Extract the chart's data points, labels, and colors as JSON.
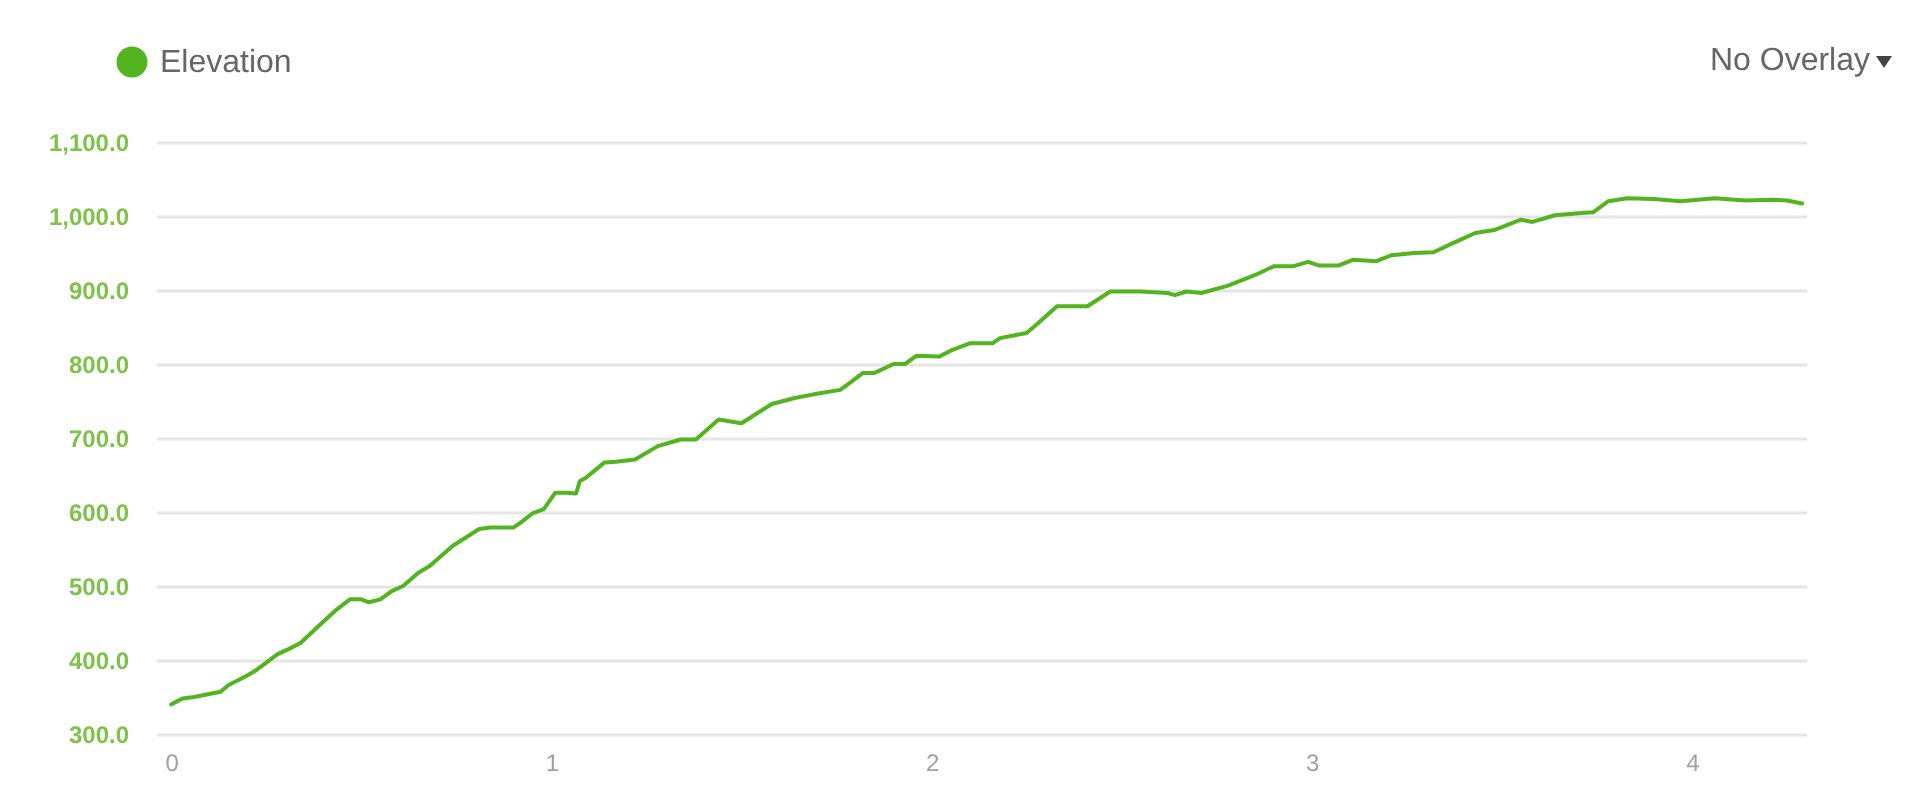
{
  "chart_data": {
    "type": "line",
    "x": [
      0,
      0.03,
      0.06,
      0.11,
      0.13,
      0.15,
      0.2,
      0.22,
      0.28,
      0.31,
      0.34,
      0.39,
      0.43,
      0.47,
      0.5,
      0.52,
      0.55,
      0.58,
      0.61,
      0.65,
      0.68,
      0.74,
      0.81,
      0.84,
      0.9,
      0.92,
      0.95,
      0.98,
      1.01,
      1.04,
      1.065,
      1.075,
      1.09,
      1.14,
      1.17,
      1.22,
      1.28,
      1.34,
      1.38,
      1.44,
      1.5,
      1.58,
      1.64,
      1.69,
      1.76,
      1.82,
      1.85,
      1.9,
      1.93,
      1.96,
      2.02,
      2.05,
      2.1,
      2.16,
      2.18,
      2.25,
      2.28,
      2.33,
      2.41,
      2.47,
      2.55,
      2.62,
      2.64,
      2.67,
      2.71,
      2.78,
      2.85,
      2.9,
      2.95,
      2.99,
      3.02,
      3.07,
      3.11,
      3.17,
      3.21,
      3.27,
      3.32,
      3.37,
      3.43,
      3.48,
      3.55,
      3.58,
      3.64,
      3.71,
      3.74,
      3.78,
      3.83,
      3.9,
      3.97,
      4.06,
      4.14,
      4.21,
      4.25,
      4.29
    ],
    "series": [
      {
        "name": "Elevation",
        "color": "#52b520",
        "values": [
          340,
          348,
          350,
          355,
          357,
          366,
          379,
          385,
          408,
          415,
          423,
          447,
          466,
          482,
          482,
          478,
          482,
          493,
          500,
          518,
          527,
          554,
          577,
          579,
          579,
          586,
          598,
          604,
          626,
          626,
          625,
          642,
          646,
          667,
          668,
          671,
          689,
          698,
          698,
          725,
          720,
          746,
          754,
          759,
          765,
          788,
          788,
          800,
          800,
          811,
          810,
          818,
          828,
          828,
          835,
          842,
          855,
          878,
          878,
          898,
          898,
          896,
          893,
          898,
          896,
          906,
          920,
          932,
          932,
          938,
          933,
          933,
          941,
          939,
          947,
          950,
          951,
          963,
          977,
          981,
          995,
          992,
          1001,
          1004,
          1005,
          1020,
          1024,
          1023,
          1020,
          1024,
          1021,
          1022,
          1021,
          1017
        ]
      }
    ],
    "xlim": [
      -0.04,
      4.3
    ],
    "xticks": [
      0,
      1,
      2,
      3,
      4
    ],
    "ylim": [
      300,
      1100
    ],
    "yticks": [
      {
        "value": 300,
        "label": "300.0"
      },
      {
        "value": 400,
        "label": "400.0"
      },
      {
        "value": 500,
        "label": "500.0"
      },
      {
        "value": 600,
        "label": "600.0"
      },
      {
        "value": 700,
        "label": "700.0"
      },
      {
        "value": 800,
        "label": "800.0"
      },
      {
        "value": 900,
        "label": "900.0"
      },
      {
        "value": 1000,
        "label": "1,000.0"
      },
      {
        "value": 1100,
        "label": "1,100.0"
      }
    ],
    "grid": "y",
    "legend": "top left",
    "line_style": "solid",
    "annotations": [
      "No Overlay"
    ]
  }
}
